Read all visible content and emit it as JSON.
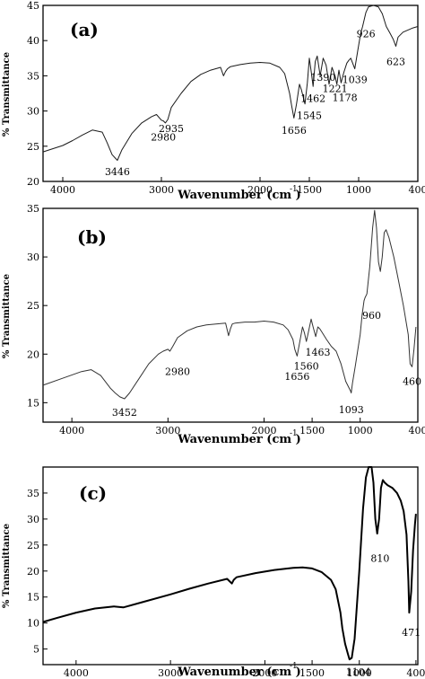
{
  "chart_data": [
    {
      "type": "line",
      "panel_label": "(a)",
      "xlabel": "Wavenumber (cm",
      "xlabel_sup": "-1",
      "ylabel": "% Transmittance",
      "xlim": [
        4200,
        400
      ],
      "ylim": [
        20,
        45
      ],
      "x_ticks": [
        4000,
        3000,
        2000,
        1500,
        1000,
        400
      ],
      "y_ticks": [
        20,
        25,
        30,
        35,
        40,
        45
      ],
      "series": [
        {
          "line_color": "#1a1a1a",
          "line_width": 1.0,
          "x": [
            4200,
            4000,
            3900,
            3800,
            3700,
            3600,
            3550,
            3500,
            3446,
            3400,
            3300,
            3200,
            3100,
            3050,
            3000,
            2980,
            2960,
            2935,
            2900,
            2800,
            2700,
            2600,
            2500,
            2400,
            2370,
            2350,
            2330,
            2300,
            2200,
            2100,
            2000,
            1900,
            1800,
            1750,
            1700,
            1680,
            1656,
            1630,
            1600,
            1580,
            1545,
            1520,
            1500,
            1480,
            1462,
            1440,
            1420,
            1390,
            1360,
            1330,
            1300,
            1270,
            1240,
            1221,
            1200,
            1178,
            1150,
            1120,
            1100,
            1080,
            1039,
            1010,
            980,
            960,
            926,
            900,
            850,
            800,
            760,
            720,
            700,
            680,
            650,
            623,
            600,
            550,
            500,
            450,
            400
          ],
          "y": [
            24.2,
            25.1,
            25.8,
            26.6,
            27.3,
            27.0,
            25.5,
            23.8,
            23.0,
            24.5,
            26.8,
            28.3,
            29.2,
            29.5,
            28.7,
            28.6,
            28.3,
            28.8,
            30.5,
            32.5,
            34.2,
            35.2,
            35.8,
            36.2,
            35.0,
            35.6,
            36.0,
            36.3,
            36.6,
            36.8,
            36.9,
            36.8,
            36.2,
            35.3,
            32.5,
            30.8,
            29.0,
            31.0,
            33.8,
            33.0,
            31.0,
            34.0,
            37.5,
            35.5,
            33.5,
            37.0,
            37.8,
            35.0,
            37.5,
            36.5,
            33.8,
            36.2,
            35.0,
            33.8,
            35.8,
            34.0,
            35.5,
            36.8,
            37.2,
            37.5,
            36.0,
            38.5,
            41.0,
            42.0,
            44.0,
            44.8,
            45.0,
            44.8,
            43.8,
            42.0,
            41.5,
            41.0,
            40.2,
            39.2,
            40.5,
            41.2,
            41.5,
            41.8,
            42.0
          ]
        }
      ],
      "annotations": [
        {
          "text": "3446",
          "x": 3446,
          "y": 21.4
        },
        {
          "text": "2980",
          "x": 2980,
          "y": 26.3
        },
        {
          "text": "2935",
          "x": 2900,
          "y": 27.5
        },
        {
          "text": "1656",
          "x": 1656,
          "y": 27.3
        },
        {
          "text": "1545",
          "x": 1500,
          "y": 29.4
        },
        {
          "text": "1462",
          "x": 1462,
          "y": 31.8
        },
        {
          "text": "1390",
          "x": 1360,
          "y": 34.8
        },
        {
          "text": "1221",
          "x": 1240,
          "y": 33.2
        },
        {
          "text": "1178",
          "x": 1140,
          "y": 31.9
        },
        {
          "text": "1039",
          "x": 1039,
          "y": 34.5
        },
        {
          "text": "926",
          "x": 926,
          "y": 41.0
        },
        {
          "text": "623",
          "x": 623,
          "y": 37.0
        }
      ]
    },
    {
      "type": "line",
      "panel_label": "(b)",
      "xlabel": "Wavenumber (cm",
      "xlabel_sup": "-1",
      "ylabel": "% Transmittance",
      "xlim": [
        4300,
        400
      ],
      "ylim": [
        13,
        35
      ],
      "x_ticks": [
        4000,
        3000,
        2000,
        1500,
        1000,
        400
      ],
      "y_ticks": [
        15,
        20,
        25,
        30,
        35
      ],
      "series": [
        {
          "line_color": "#333333",
          "line_width": 1.0,
          "x": [
            4300,
            4100,
            3900,
            3800,
            3700,
            3600,
            3550,
            3500,
            3452,
            3400,
            3300,
            3200,
            3100,
            3050,
            3000,
            2980,
            2950,
            2900,
            2800,
            2700,
            2600,
            2500,
            2400,
            2370,
            2350,
            2330,
            2300,
            2200,
            2100,
            2000,
            1900,
            1800,
            1750,
            1700,
            1680,
            1656,
            1630,
            1600,
            1580,
            1560,
            1540,
            1510,
            1490,
            1463,
            1440,
            1420,
            1400,
            1350,
            1300,
            1250,
            1200,
            1150,
            1100,
            1093,
            1080,
            1050,
            1000,
            980,
            960,
            950,
            930,
            900,
            870,
            850,
            830,
            810,
            790,
            770,
            750,
            730,
            700,
            650,
            600,
            550,
            500,
            480,
            460,
            440,
            420
          ],
          "y": [
            16.8,
            17.5,
            18.2,
            18.4,
            17.8,
            16.5,
            16.0,
            15.6,
            15.4,
            16.0,
            17.5,
            19.0,
            20.0,
            20.3,
            20.5,
            20.3,
            20.8,
            21.7,
            22.4,
            22.8,
            23.0,
            23.1,
            23.2,
            21.9,
            22.6,
            23.1,
            23.2,
            23.3,
            23.3,
            23.4,
            23.3,
            23.0,
            22.5,
            21.5,
            20.5,
            19.8,
            21.2,
            22.8,
            22.2,
            21.3,
            22.2,
            23.6,
            22.8,
            21.8,
            22.8,
            22.6,
            22.3,
            21.5,
            20.8,
            20.3,
            19.0,
            17.2,
            16.2,
            16.0,
            17.0,
            18.8,
            22.0,
            24.0,
            25.5,
            25.8,
            26.2,
            29.0,
            33.0,
            34.8,
            33.0,
            29.5,
            28.5,
            30.0,
            32.5,
            32.8,
            32.0,
            30.0,
            27.5,
            25.0,
            22.0,
            19.0,
            18.7,
            20.5,
            22.8
          ]
        }
      ],
      "annotations": [
        {
          "text": "3452",
          "x": 3452,
          "y": 14.0
        },
        {
          "text": "2980",
          "x": 2900,
          "y": 18.2
        },
        {
          "text": "1656",
          "x": 1656,
          "y": 17.7
        },
        {
          "text": "1560",
          "x": 1560,
          "y": 18.8
        },
        {
          "text": "1463",
          "x": 1440,
          "y": 20.2
        },
        {
          "text": "1093",
          "x": 1093,
          "y": 14.3
        },
        {
          "text": "960",
          "x": 880,
          "y": 24.0
        },
        {
          "text": "460",
          "x": 460,
          "y": 17.2
        }
      ]
    },
    {
      "type": "line",
      "panel_label": "(c)",
      "xlabel": "Wavenumber (cm",
      "xlabel_sup": "-1",
      "ylabel": "% Transmittance",
      "xlim": [
        4350,
        380
      ],
      "ylim": [
        2,
        40
      ],
      "x_ticks": [
        4000,
        3000,
        2000,
        1500,
        1000,
        400
      ],
      "y_ticks": [
        5,
        10,
        15,
        20,
        25,
        30,
        35
      ],
      "series": [
        {
          "line_color": "#000000",
          "line_width": 2.0,
          "x": [
            4350,
            4200,
            4000,
            3800,
            3600,
            3500,
            3300,
            3000,
            2800,
            2600,
            2400,
            2350,
            2330,
            2300,
            2100,
            1900,
            1700,
            1600,
            1500,
            1400,
            1300,
            1250,
            1200,
            1180,
            1150,
            1120,
            1104,
            1080,
            1050,
            1000,
            960,
            930,
            900,
            870,
            850,
            830,
            810,
            790,
            770,
            750,
            730,
            700,
            650,
            600,
            560,
            530,
            500,
            480,
            471,
            450,
            430,
            410,
            400
          ],
          "y": [
            10.2,
            11.0,
            12.0,
            12.8,
            13.2,
            13.0,
            14.0,
            15.5,
            16.6,
            17.6,
            18.5,
            17.6,
            18.3,
            18.8,
            19.6,
            20.2,
            20.6,
            20.7,
            20.5,
            19.8,
            18.3,
            16.5,
            12.0,
            9.0,
            6.0,
            4.0,
            3.0,
            3.3,
            7.0,
            20.0,
            32.0,
            38.0,
            40.0,
            40.0,
            37.0,
            30.0,
            27.2,
            30.0,
            36.0,
            37.5,
            37.0,
            36.5,
            36.0,
            35.0,
            33.5,
            31.5,
            27.0,
            18.0,
            12.0,
            16.0,
            24.0,
            29.0,
            31.0
          ]
        }
      ],
      "annotations": [
        {
          "text": "810",
          "x": 780,
          "y": 22.5
        },
        {
          "text": "471",
          "x": 450,
          "y": 8.2
        },
        {
          "text": "1104",
          "x": 1010,
          "y": 0.6
        }
      ]
    }
  ]
}
